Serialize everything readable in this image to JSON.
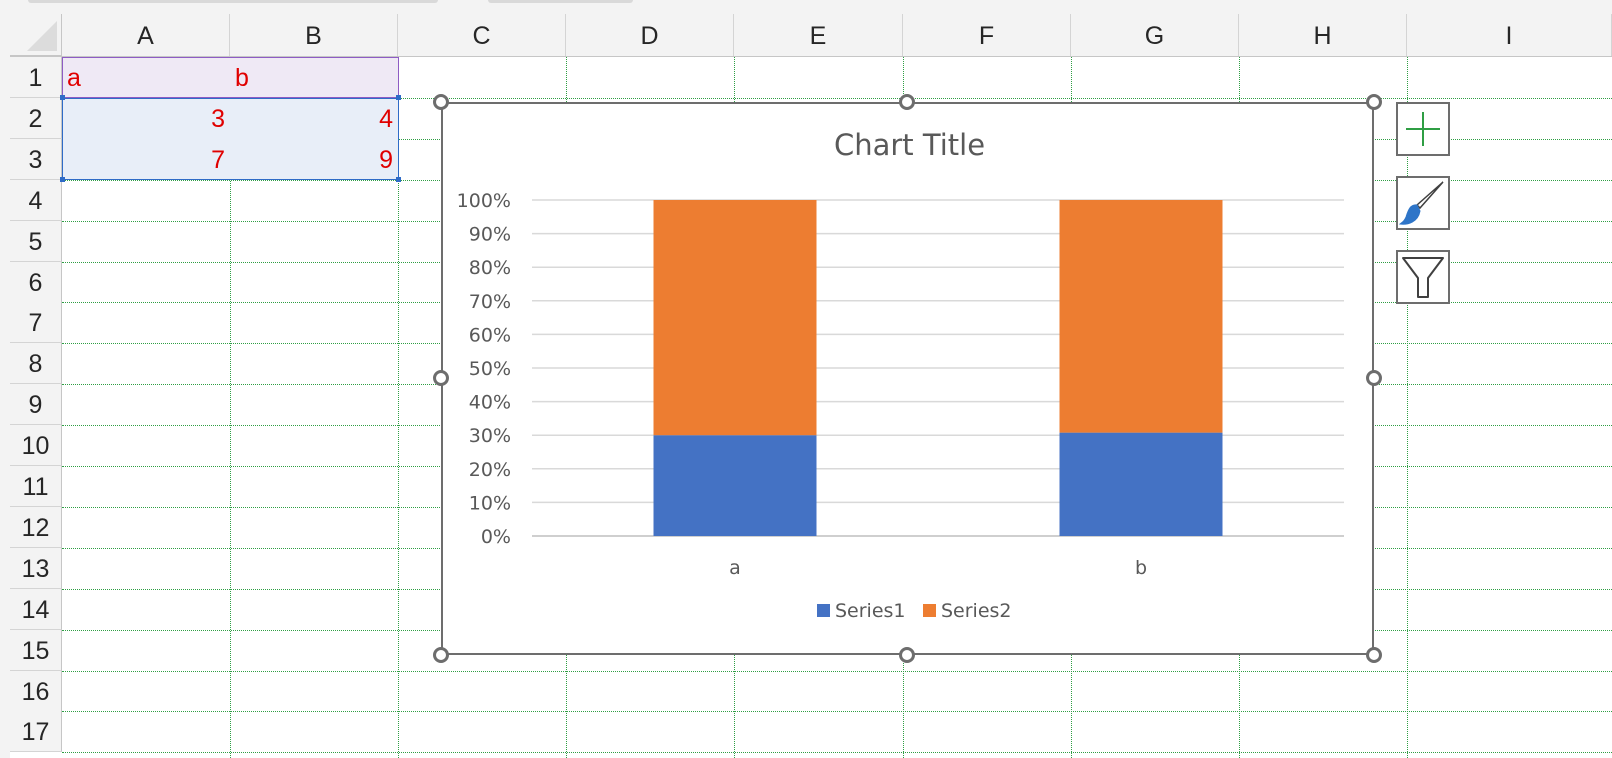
{
  "columns": [
    "A",
    "B",
    "C",
    "D",
    "E",
    "F",
    "G",
    "H",
    "I"
  ],
  "rows": [
    "1",
    "2",
    "3",
    "4",
    "5",
    "6",
    "7",
    "8",
    "9",
    "10",
    "11",
    "12",
    "13",
    "14",
    "15",
    "16",
    "17"
  ],
  "cells": {
    "A1": "a",
    "B1": "b",
    "A2": "3",
    "B2": "4",
    "A3": "7",
    "B3": "9"
  },
  "colors": {
    "series1": "#4472c4",
    "series2": "#ed7d31",
    "cell_text": "#e00000",
    "gridline_dotted": "#2f9e44"
  },
  "chart_buttons": [
    "chart-elements-icon",
    "chart-styles-icon",
    "chart-filters-icon"
  ],
  "chart_data": {
    "type": "bar",
    "subtype": "100% stacked column",
    "title": "Chart Title",
    "categories": [
      "a",
      "b"
    ],
    "series": [
      {
        "name": "Series1",
        "values": [
          3,
          4
        ]
      },
      {
        "name": "Series2",
        "values": [
          7,
          9
        ]
      }
    ],
    "y_ticks": [
      "0%",
      "10%",
      "20%",
      "30%",
      "40%",
      "50%",
      "60%",
      "70%",
      "80%",
      "90%",
      "100%"
    ],
    "ylim": [
      0,
      100
    ],
    "legend": "bottom",
    "grid": true
  }
}
